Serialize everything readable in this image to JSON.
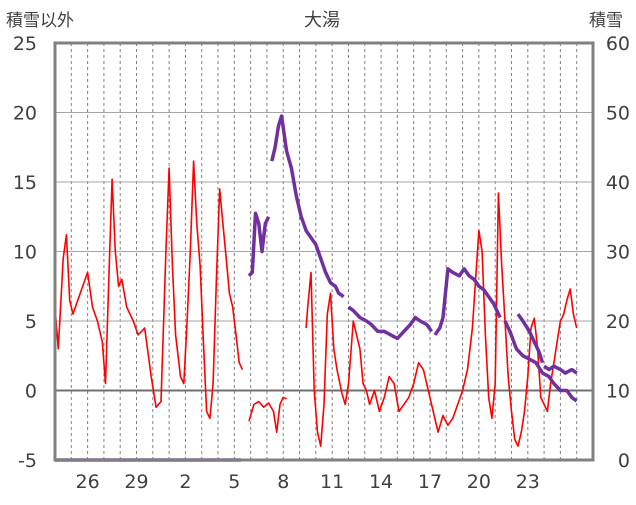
{
  "chart_data": {
    "type": "line",
    "title": "大湯",
    "left_axis": {
      "label": "積雪以外",
      "ylim": [
        -5,
        25
      ],
      "ticks": [
        -5,
        0,
        5,
        10,
        15,
        20,
        25
      ]
    },
    "right_axis": {
      "label": "積雪",
      "ylim": [
        0,
        60
      ],
      "ticks": [
        0,
        10,
        20,
        30,
        40,
        50,
        60
      ]
    },
    "x_range": [
      0,
      33
    ],
    "x_ticks": [
      {
        "x": 2,
        "label": "26"
      },
      {
        "x": 5,
        "label": "29"
      },
      {
        "x": 8,
        "label": "2"
      },
      {
        "x": 11,
        "label": "5"
      },
      {
        "x": 14,
        "label": "8"
      },
      {
        "x": 17,
        "label": "11"
      },
      {
        "x": 20,
        "label": "14"
      },
      {
        "x": 23,
        "label": "17"
      },
      {
        "x": 26,
        "label": "20"
      },
      {
        "x": 29,
        "label": "23"
      }
    ],
    "grid_days": [
      1,
      2,
      3,
      4,
      5,
      6,
      7,
      8,
      9,
      10,
      11,
      12,
      13,
      14,
      15,
      16,
      17,
      18,
      19,
      20,
      21,
      22,
      23,
      24,
      25,
      26,
      27,
      28,
      29,
      30,
      31,
      32
    ],
    "colors": {
      "temperature": "#ff0000",
      "snow_depth": "#7030a0",
      "axis": "#808080",
      "grid": "#808080"
    },
    "series": [
      {
        "axis": "left",
        "color": "#ff0000",
        "segments": [
          [
            [
              0.0,
              6.0
            ],
            [
              0.2,
              3.0
            ],
            [
              0.5,
              9.5
            ],
            [
              0.7,
              11.2
            ],
            [
              0.9,
              6.5
            ],
            [
              1.1,
              5.5
            ],
            [
              1.4,
              6.5
            ],
            [
              1.7,
              7.5
            ],
            [
              2.0,
              8.5
            ],
            [
              2.3,
              6.0
            ],
            [
              2.6,
              5.0
            ],
            [
              2.9,
              3.5
            ],
            [
              3.1,
              0.5
            ],
            [
              3.3,
              8.0
            ],
            [
              3.5,
              15.2
            ],
            [
              3.7,
              10.0
            ],
            [
              3.9,
              7.5
            ],
            [
              4.1,
              8.0
            ],
            [
              4.4,
              6.0
            ],
            [
              4.8,
              5.0
            ],
            [
              5.1,
              4.0
            ],
            [
              5.5,
              4.5
            ],
            [
              5.9,
              1.0
            ],
            [
              6.2,
              -1.2
            ],
            [
              6.5,
              -0.8
            ],
            [
              6.8,
              10.0
            ],
            [
              7.0,
              16.0
            ],
            [
              7.2,
              9.0
            ],
            [
              7.4,
              4.0
            ],
            [
              7.7,
              1.0
            ],
            [
              7.9,
              0.5
            ],
            [
              8.1,
              5.0
            ],
            [
              8.3,
              10.0
            ],
            [
              8.5,
              16.5
            ],
            [
              8.7,
              12.0
            ],
            [
              8.9,
              9.0
            ],
            [
              9.1,
              3.5
            ],
            [
              9.3,
              -1.5
            ],
            [
              9.5,
              -2.0
            ],
            [
              9.7,
              0.5
            ],
            [
              9.9,
              8.0
            ],
            [
              10.1,
              14.5
            ],
            [
              10.3,
              12.0
            ],
            [
              10.5,
              9.5
            ],
            [
              10.7,
              7.0
            ],
            [
              10.9,
              6.0
            ],
            [
              11.1,
              4.0
            ],
            [
              11.3,
              2.0
            ],
            [
              11.5,
              1.5
            ]
          ],
          [
            [
              11.9,
              -2.2
            ],
            [
              12.2,
              -1.0
            ],
            [
              12.5,
              -0.8
            ],
            [
              12.8,
              -1.2
            ],
            [
              13.1,
              -0.9
            ],
            [
              13.4,
              -1.5
            ],
            [
              13.6,
              -3.0
            ],
            [
              13.8,
              -1.0
            ],
            [
              14.0,
              -0.5
            ],
            [
              14.2,
              -0.6
            ]
          ],
          [
            [
              15.4,
              4.5
            ],
            [
              15.5,
              6.0
            ],
            [
              15.7,
              8.5
            ],
            [
              15.9,
              0.0
            ],
            [
              16.1,
              -3.0
            ],
            [
              16.3,
              -4.0
            ],
            [
              16.5,
              -1.0
            ],
            [
              16.7,
              5.5
            ],
            [
              16.9,
              7.0
            ],
            [
              17.1,
              3.0
            ],
            [
              17.3,
              1.5
            ],
            [
              17.6,
              -0.2
            ],
            [
              17.8,
              -1.0
            ],
            [
              18.0,
              0.5
            ],
            [
              18.3,
              5.0
            ],
            [
              18.5,
              4.0
            ],
            [
              18.7,
              3.0
            ],
            [
              18.9,
              0.5
            ],
            [
              19.1,
              0.0
            ],
            [
              19.3,
              -1.0
            ],
            [
              19.6,
              0.0
            ],
            [
              19.9,
              -1.5
            ],
            [
              20.2,
              -0.5
            ],
            [
              20.5,
              1.0
            ],
            [
              20.8,
              0.5
            ],
            [
              21.1,
              -1.5
            ],
            [
              21.4,
              -1.0
            ],
            [
              21.7,
              -0.5
            ],
            [
              22.0,
              0.5
            ],
            [
              22.3,
              2.0
            ],
            [
              22.6,
              1.5
            ],
            [
              22.9,
              0.0
            ],
            [
              23.2,
              -1.5
            ],
            [
              23.5,
              -3.0
            ],
            [
              23.8,
              -1.8
            ],
            [
              24.1,
              -2.5
            ],
            [
              24.4,
              -2.0
            ],
            [
              24.7,
              -1.0
            ],
            [
              25.0,
              0.0
            ],
            [
              25.3,
              1.5
            ],
            [
              25.6,
              4.5
            ],
            [
              25.8,
              8.0
            ],
            [
              26.0,
              11.5
            ],
            [
              26.2,
              10.0
            ],
            [
              26.4,
              4.0
            ],
            [
              26.6,
              -0.5
            ],
            [
              26.8,
              -2.0
            ],
            [
              27.0,
              0.5
            ],
            [
              27.2,
              14.2
            ],
            [
              27.4,
              9.0
            ],
            [
              27.6,
              5.0
            ],
            [
              27.8,
              1.0
            ],
            [
              28.0,
              -1.5
            ],
            [
              28.2,
              -3.5
            ],
            [
              28.4,
              -4.0
            ],
            [
              28.6,
              -3.0
            ],
            [
              28.8,
              -1.5
            ],
            [
              29.0,
              1.0
            ],
            [
              29.2,
              4.5
            ],
            [
              29.4,
              5.2
            ],
            [
              29.6,
              3.0
            ],
            [
              29.8,
              -0.5
            ],
            [
              30.0,
              -1.0
            ],
            [
              30.2,
              -1.5
            ],
            [
              30.4,
              0.5
            ],
            [
              30.6,
              2.0
            ],
            [
              30.8,
              3.5
            ],
            [
              31.0,
              5.0
            ],
            [
              31.2,
              5.5
            ],
            [
              31.4,
              6.5
            ],
            [
              31.6,
              7.3
            ],
            [
              31.8,
              5.5
            ],
            [
              32.0,
              4.5
            ]
          ]
        ]
      },
      {
        "axis": "right",
        "color": "#7030a0",
        "segments": [
          [
            [
              0.0,
              0.0
            ],
            [
              11.4,
              0.0
            ]
          ],
          [
            [
              11.9,
              26.5
            ],
            [
              12.1,
              27.0
            ],
            [
              12.3,
              35.5
            ],
            [
              12.5,
              34.0
            ],
            [
              12.7,
              30.0
            ],
            [
              12.9,
              34.0
            ],
            [
              13.1,
              35.0
            ]
          ],
          [
            [
              13.3,
              43.0
            ],
            [
              13.5,
              45.0
            ],
            [
              13.7,
              48.0
            ],
            [
              13.9,
              49.5
            ],
            [
              14.2,
              44.5
            ],
            [
              14.5,
              42.0
            ],
            [
              14.8,
              38.0
            ],
            [
              15.1,
              35.0
            ],
            [
              15.4,
              33.0
            ],
            [
              15.7,
              32.0
            ],
            [
              16.0,
              31.0
            ],
            [
              16.3,
              29.0
            ],
            [
              16.6,
              27.0
            ],
            [
              16.9,
              25.5
            ],
            [
              17.2,
              25.0
            ],
            [
              17.4,
              24.0
            ],
            [
              17.7,
              23.5
            ]
          ],
          [
            [
              18.0,
              22.0
            ],
            [
              18.3,
              21.5
            ],
            [
              18.7,
              20.5
            ],
            [
              19.1,
              20.0
            ],
            [
              19.4,
              19.5
            ],
            [
              19.8,
              18.5
            ],
            [
              20.2,
              18.5
            ],
            [
              20.6,
              18.0
            ],
            [
              21.0,
              17.5
            ],
            [
              21.4,
              18.5
            ],
            [
              21.8,
              19.5
            ],
            [
              22.1,
              20.5
            ],
            [
              22.4,
              20.0
            ],
            [
              22.8,
              19.5
            ],
            [
              23.1,
              18.5
            ]
          ],
          [
            [
              23.3,
              18.0
            ],
            [
              23.6,
              19.0
            ],
            [
              23.8,
              20.5
            ],
            [
              24.1,
              27.5
            ],
            [
              24.4,
              27.0
            ],
            [
              24.8,
              26.5
            ],
            [
              25.1,
              27.5
            ],
            [
              25.4,
              26.5
            ],
            [
              25.7,
              26.0
            ],
            [
              26.0,
              25.0
            ],
            [
              26.3,
              24.5
            ],
            [
              26.6,
              23.5
            ],
            [
              26.9,
              22.5
            ],
            [
              27.3,
              20.5
            ]
          ],
          [
            [
              27.6,
              20.0
            ],
            [
              27.9,
              18.5
            ],
            [
              28.3,
              16.0
            ],
            [
              28.7,
              15.0
            ],
            [
              29.1,
              14.5
            ],
            [
              29.5,
              14.0
            ],
            [
              29.9,
              12.5
            ],
            [
              30.3,
              12.0
            ],
            [
              30.6,
              11.0
            ],
            [
              31.0,
              10.0
            ],
            [
              31.4,
              10.0
            ],
            [
              31.7,
              9.0
            ],
            [
              32.0,
              8.5
            ]
          ],
          [
            [
              28.4,
              21.0
            ],
            [
              28.7,
              20.0
            ],
            [
              29.1,
              18.5
            ],
            [
              29.4,
              17.0
            ],
            [
              29.7,
              15.5
            ],
            [
              29.9,
              14.0
            ]
          ],
          [
            [
              30.0,
              13.5
            ],
            [
              30.3,
              13.0
            ],
            [
              30.6,
              13.5
            ],
            [
              31.0,
              13.0
            ],
            [
              31.3,
              12.5
            ],
            [
              31.7,
              13.0
            ],
            [
              32.0,
              12.5
            ]
          ]
        ]
      }
    ]
  }
}
